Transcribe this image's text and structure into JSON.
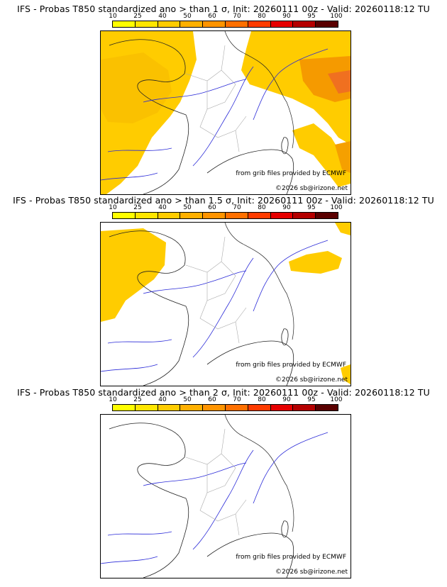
{
  "colorbar": {
    "labels": [
      "10",
      "25",
      "40",
      "50",
      "60",
      "70",
      "80",
      "90",
      "95",
      "100"
    ],
    "colors": [
      "#ffff00",
      "#ffe600",
      "#ffcc00",
      "#ffb000",
      "#ff9400",
      "#ff7000",
      "#ff3c00",
      "#e60000",
      "#b40000",
      "#5a0000"
    ]
  },
  "panels": [
    {
      "title": "IFS - Probas T850  standardized ano > than 1 σ, Init: 20260111 00z - Valid: 20260118:12 TU",
      "source_note": "from grib files provided by ECMWF",
      "copyright": "©2026 sb@irizone.net",
      "shading_level": "high"
    },
    {
      "title": "IFS - Probas T850  standardized ano > than 1.5 σ, Init: 20260111 00z - Valid: 20260118:12 TU",
      "source_note": "from grib files provided by ECMWF",
      "copyright": "©2026 sb@irizone.net",
      "shading_level": "medium"
    },
    {
      "title": "IFS - Probas T850  standardized ano > than 2 σ, Init: 20260111 00z - Valid: 20260118:12 TU",
      "source_note": "from grib files provided by ECMWF",
      "copyright": "©2026 sb@irizone.net",
      "shading_level": "none"
    }
  ]
}
